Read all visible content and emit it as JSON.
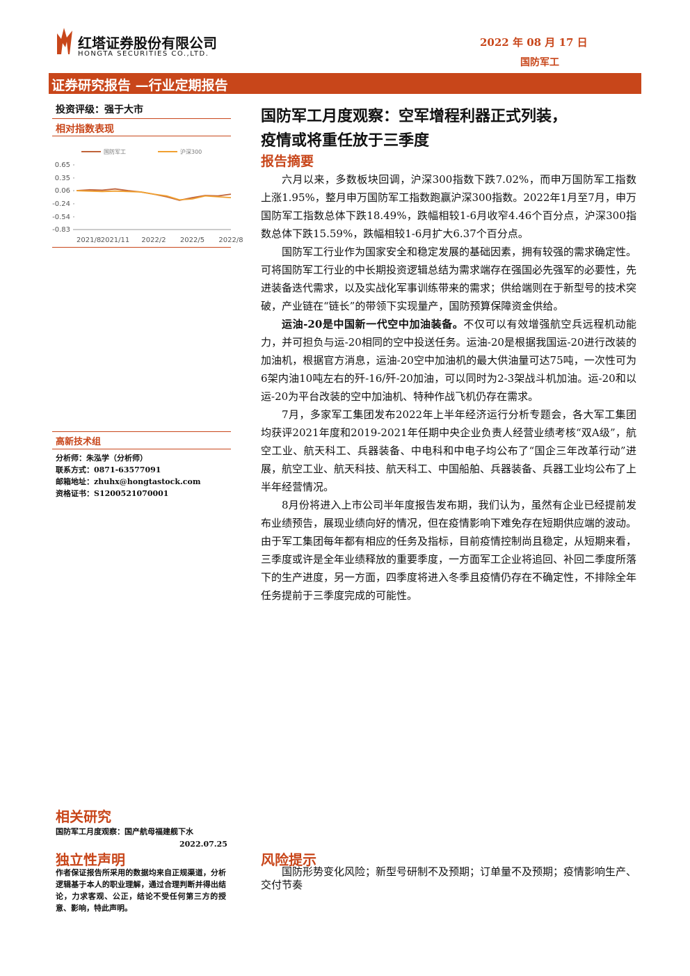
{
  "header": {
    "company": "红塔证券股份有限公司",
    "company_en": "HONGTA SECURITIES CO.,LTD.",
    "date": "2022 年 08 月 17 日",
    "sector": "国防军工",
    "banner": "证券研究报告 —行业定期报告"
  },
  "sidebar": {
    "rating": "投资评级：强于大市",
    "chart_heading": "相对指数表现",
    "team": "高新技术组",
    "analyst": [
      "分析师：朱泓学（分析师）",
      "联系方式：0871-63577091",
      "邮箱地址：zhuhx@hongtastock.com",
      "资格证书：S1200521070001"
    ],
    "related_heading": "相关研究",
    "related_title": "国防军工月度观察：国产航母福建舰下水",
    "related_date": "2022.07.25",
    "statement_heading": "独立性声明",
    "statement": "作者保证报告所采用的数据均来自正规渠道，分析逻辑基于本人的职业理解，通过合理判断并得出结论，力求客观、公正，结论不受任何第三方的授意、影响，特此声明。"
  },
  "chart": {
    "type": "line",
    "x": [
      "2021/8",
      "2021/9",
      "2021/10",
      "2021/11",
      "2021/12",
      "2022/1",
      "2022/2",
      "2022/3",
      "2022/4",
      "2022/5",
      "2022/6",
      "2022/7",
      "2022/8"
    ],
    "series": [
      {
        "name": "国防军工",
        "color": "#c0633a",
        "values": [
          0.06,
          0.08,
          0.07,
          0.1,
          0.06,
          0.03,
          -0.02,
          -0.08,
          -0.16,
          -0.1,
          -0.05,
          -0.06,
          -0.02
        ]
      },
      {
        "name": "沪深300",
        "color": "#f0a030",
        "values": [
          0.06,
          0.05,
          0.04,
          0.05,
          0.04,
          0.03,
          -0.02,
          -0.06,
          -0.15,
          -0.13,
          -0.06,
          -0.08,
          -0.1
        ]
      }
    ],
    "ylim": [
      -0.83,
      0.65
    ],
    "yticks": [
      0.65,
      0.35,
      0.06,
      -0.24,
      -0.54,
      -0.83
    ],
    "xticks": [
      "2021/8",
      "2021/11",
      "2022/2",
      "2022/5",
      "2022/8"
    ]
  },
  "main": {
    "title": [
      "国防军工月度观察：空军增程利器正式列装，",
      "疫情或将重任放于三季度"
    ],
    "summary_heading": "报告摘要",
    "paragraphs": [
      {
        "text": "六月以来，多数板块回调，沪深300指数下跌7.02%，而申万国防军工指数上涨1.95%，整月申万国防军工指数跑赢沪深300指数。2022年1月至7月，申万国防军工指数总体下跌18.49%，跌幅相较1-6月收窄4.46个百分点，沪深300指数总体下跌15.59%，跌幅相较1-6月扩大6.37个百分点。"
      },
      {
        "text": "国防军工行业作为国家安全和稳定发展的基础因素，拥有较强的需求确定性。可将国防军工行业的中长期投资逻辑总结为需求端存在强国必先强军的必要性，先进装备迭代需求，以及实战化军事训练带来的需求；供给端则在于新型号的技术突破，产业链在“链长”的带领下实现量产，国防预算保障资金供给。"
      },
      {
        "lead": "运油-20是中国新一代空中加油装备。",
        "text": "不仅可以有效增强航空兵远程机动能力，并可担负与运-20相同的空中投送任务。运油-20是根据我国运-20进行改装的加油机，根据官方消息，运油-20空中加油机的最大供油量可达75吨，一次性可为6架内油10吨左右的歼-16/歼-20加油，可以同时为2-3架战斗机加油。运-20和以运-20为平台改装的空中加油机、特种作战飞机仍存在需求。"
      },
      {
        "text": "7月，多家军工集团发布2022年上半年经济运行分析专题会，各大军工集团均获评2021年度和2019-2021年任期中央企业负责人经营业绩考核“双A级”，航空工业、航天科工、兵器装备、中电科和中电子均公布了“国企三年改革行动”进展，航空工业、航天科技、航天科工、中国船舶、兵器装备、兵器工业均公布了上半年经营情况。"
      },
      {
        "text": "8月份将进入上市公司半年度报告发布期，我们认为，虽然有企业已经提前发布业绩预告，展现业绩向好的情况，但在疫情影响下难免存在短期供应端的波动。由于军工集团每年都有相应的任务及指标，目前疫情控制尚且稳定，从短期来看，三季度或许是全年业绩释放的重要季度，一方面军工企业将追回、补回二季度所落下的生产进度，另一方面，四季度将进入冬季且疫情仍存在不确定性，不排除全年任务提前于三季度完成的可能性。"
      }
    ],
    "risk_heading": "风险提示",
    "risk": "国防形势变化风险；新型号研制不及预期；订单量不及预期；疫情影响生产、交付节奏"
  }
}
